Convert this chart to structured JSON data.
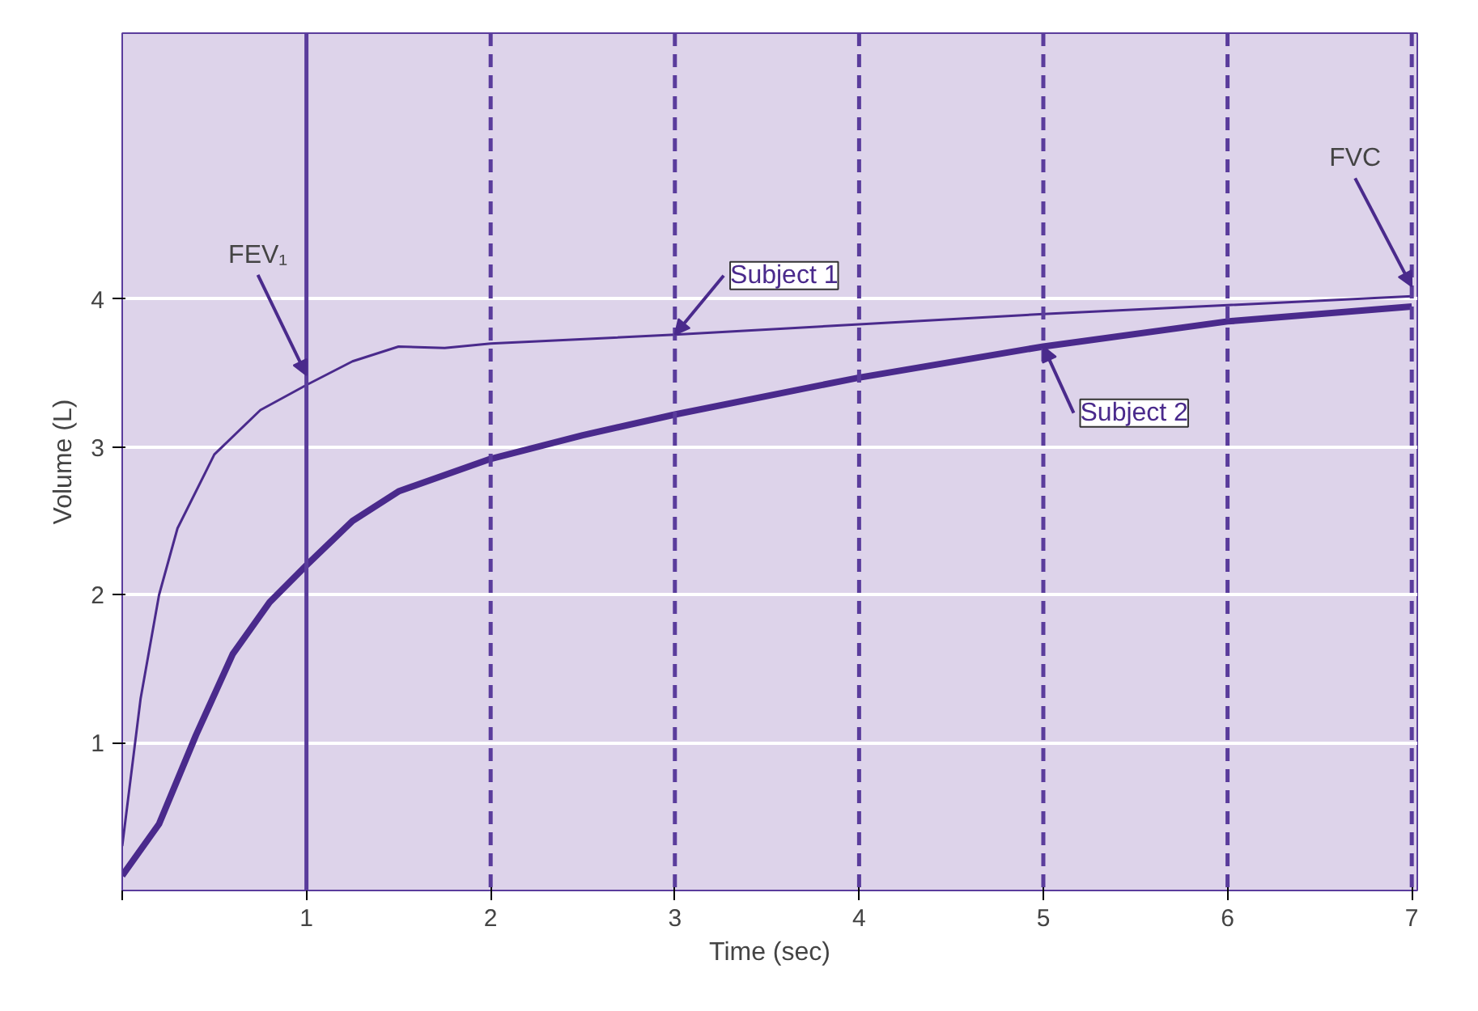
{
  "chart_data": {
    "type": "line",
    "xlabel": "Time (sec)",
    "ylabel": "Volume (L)",
    "xlim": [
      0,
      7.03
    ],
    "ylim": [
      0,
      5.8
    ],
    "xticks": [
      {
        "value": 0,
        "label": null
      },
      1,
      2,
      3,
      4,
      5,
      6,
      7
    ],
    "yticks": [
      1,
      2,
      3,
      4
    ],
    "grid": "y",
    "legend": false,
    "series": [
      {
        "name": "Subject 1",
        "color": "#4a2a8c",
        "x": [
          0,
          0.1,
          0.2,
          0.3,
          0.5,
          0.75,
          1,
          1.25,
          1.5,
          1.75,
          2,
          3,
          4,
          5,
          6,
          7
        ],
        "values": [
          0.3,
          1.3,
          2.0,
          2.45,
          2.95,
          3.25,
          3.42,
          3.58,
          3.68,
          3.67,
          3.7,
          3.76,
          3.83,
          3.9,
          3.96,
          4.02
        ]
      },
      {
        "name": "Subject 2",
        "color": "#4a2a8c",
        "x": [
          0,
          0.2,
          0.4,
          0.6,
          0.8,
          1,
          1.25,
          1.5,
          2,
          2.5,
          3,
          4,
          5,
          6,
          7
        ],
        "values": [
          0.1,
          0.45,
          1.05,
          1.6,
          1.95,
          2.2,
          2.5,
          2.7,
          2.92,
          3.08,
          3.22,
          3.47,
          3.68,
          3.85,
          3.95
        ]
      }
    ],
    "ref_lines": [
      {
        "axis": "x",
        "value": 1,
        "label": null,
        "color": "#5a3c9c",
        "line_style": "solid"
      },
      {
        "axis": "x",
        "value": 2,
        "label": null,
        "color": "#5a3c9c",
        "line_style": "dashed"
      },
      {
        "axis": "x",
        "value": 3,
        "label": null,
        "color": "#5a3c9c",
        "line_style": "dashed"
      },
      {
        "axis": "x",
        "value": 4,
        "label": null,
        "color": "#5a3c9c",
        "line_style": "dashed"
      },
      {
        "axis": "x",
        "value": 5,
        "label": null,
        "color": "#5a3c9c",
        "line_style": "dashed"
      },
      {
        "axis": "x",
        "value": 6,
        "label": null,
        "color": "#5a3c9c",
        "line_style": "dashed"
      },
      {
        "axis": "x",
        "value": 7,
        "label": null,
        "color": "#5a3c9c",
        "line_style": "dashed"
      }
    ],
    "annotations": [
      {
        "text": "FEV₁",
        "x": 1.0,
        "y": 3.42
      },
      {
        "text": "FVC",
        "x": 7.0,
        "y": 4.02
      }
    ]
  }
}
